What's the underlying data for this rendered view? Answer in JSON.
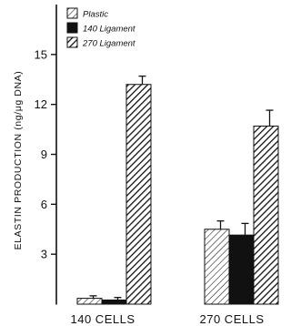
{
  "chart_data": {
    "type": "bar",
    "title": "",
    "xlabel": "",
    "ylabel": "ELASTIN PRODUCTION (ng/μg DNA)",
    "ylim": [
      0,
      18
    ],
    "yticks": [
      3,
      6,
      9,
      12,
      15
    ],
    "categories": [
      "140 CELLS",
      "270 CELLS"
    ],
    "series": [
      {
        "name": "Plastic",
        "values": [
          0.35,
          4.5
        ],
        "errors": [
          0.15,
          0.5
        ],
        "pattern": "light-hatch"
      },
      {
        "name": "140 Ligament",
        "values": [
          0.25,
          4.15
        ],
        "errors": [
          0.15,
          0.7
        ],
        "pattern": "solid"
      },
      {
        "name": "270 Ligament",
        "values": [
          13.2,
          10.7
        ],
        "errors": [
          0.5,
          0.95
        ],
        "pattern": "dense-hatch"
      }
    ],
    "legend_position": "top-left",
    "grid": false,
    "colors": {
      "ink": "#111111",
      "background": "#ffffff"
    }
  }
}
